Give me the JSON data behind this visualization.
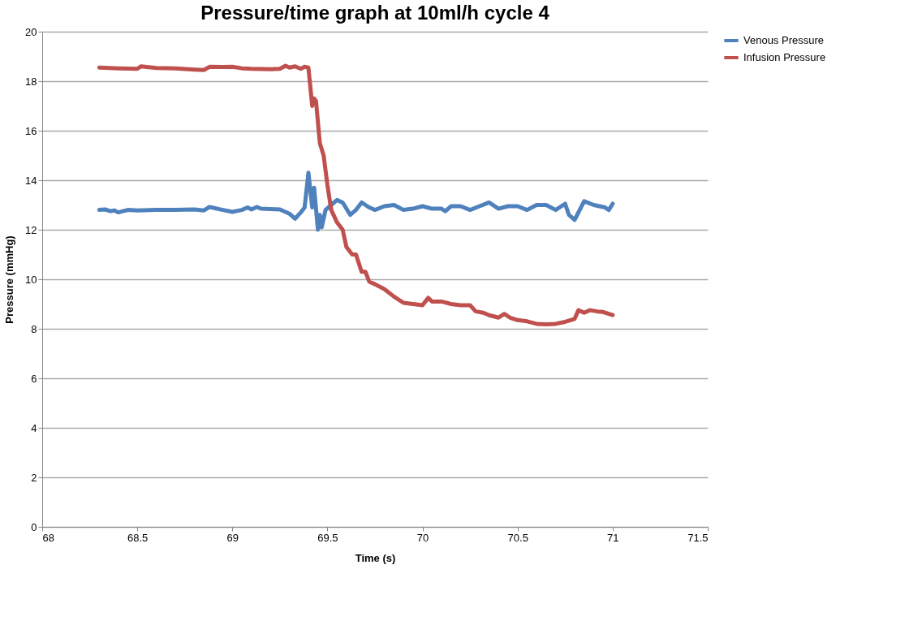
{
  "chart_data": {
    "type": "line",
    "title": "Pressure/time graph at 10ml/h cycle 4",
    "xlabel": "Time (s)",
    "ylabel": "Pressure (mmHg)",
    "xlim": [
      68,
      71.5
    ],
    "xticks": [
      68,
      68.5,
      69,
      69.5,
      70,
      70.5,
      71,
      71.5
    ],
    "ylim": [
      0,
      20
    ],
    "yticks": [
      0,
      2,
      4,
      6,
      8,
      10,
      12,
      14,
      16,
      18,
      20
    ],
    "grid": "y",
    "legend": "right",
    "marker": "none",
    "line_style": "solid",
    "series": [
      {
        "name": "Venous Pressure",
        "color": "#4f81bd",
        "x": [
          68.3,
          68.33,
          68.36,
          68.38,
          68.4,
          68.45,
          68.5,
          68.6,
          68.7,
          68.8,
          68.85,
          68.88,
          68.95,
          69.0,
          69.05,
          69.08,
          69.1,
          69.13,
          69.15,
          69.25,
          69.3,
          69.33,
          69.36,
          69.38,
          69.4,
          69.42,
          69.43,
          69.45,
          69.46,
          69.47,
          69.49,
          69.52,
          69.55,
          69.58,
          69.62,
          69.65,
          69.68,
          69.7,
          69.72,
          69.75,
          69.8,
          69.85,
          69.9,
          69.95,
          70.0,
          70.05,
          70.1,
          70.12,
          70.15,
          70.2,
          70.25,
          70.3,
          70.35,
          70.4,
          70.45,
          70.5,
          70.55,
          70.6,
          70.65,
          70.7,
          70.75,
          70.77,
          70.8,
          70.85,
          70.9,
          70.93,
          70.96,
          70.98,
          71.0
        ],
        "values": [
          12.8,
          12.82,
          12.75,
          12.78,
          12.7,
          12.8,
          12.78,
          12.8,
          12.8,
          12.82,
          12.78,
          12.92,
          12.8,
          12.72,
          12.8,
          12.9,
          12.82,
          12.92,
          12.85,
          12.82,
          12.65,
          12.45,
          12.7,
          12.9,
          14.3,
          12.9,
          13.7,
          12.0,
          12.6,
          12.1,
          12.8,
          13.0,
          13.2,
          13.1,
          12.6,
          12.8,
          13.1,
          13.0,
          12.9,
          12.8,
          12.95,
          13.0,
          12.8,
          12.85,
          12.95,
          12.85,
          12.85,
          12.75,
          12.95,
          12.95,
          12.8,
          12.95,
          13.1,
          12.85,
          12.95,
          12.95,
          12.8,
          13.0,
          13.0,
          12.8,
          13.05,
          12.6,
          12.4,
          13.15,
          13.0,
          12.95,
          12.9,
          12.8,
          13.05
        ]
      },
      {
        "name": "Infusion Pressure",
        "color": "#c0504d",
        "x": [
          68.3,
          68.4,
          68.5,
          68.52,
          68.6,
          68.7,
          68.8,
          68.85,
          68.88,
          68.95,
          69.0,
          69.05,
          69.1,
          69.2,
          69.25,
          69.28,
          69.3,
          69.33,
          69.36,
          69.38,
          69.4,
          69.42,
          69.43,
          69.44,
          69.46,
          69.48,
          69.5,
          69.52,
          69.55,
          69.58,
          69.6,
          69.63,
          69.65,
          69.68,
          69.7,
          69.72,
          69.75,
          69.8,
          69.85,
          69.9,
          69.95,
          70.0,
          70.03,
          70.05,
          70.1,
          70.15,
          70.2,
          70.25,
          70.28,
          70.32,
          70.35,
          70.4,
          70.43,
          70.46,
          70.5,
          70.55,
          70.6,
          70.65,
          70.7,
          70.75,
          70.8,
          70.82,
          70.85,
          70.88,
          70.92,
          70.95,
          71.0
        ],
        "values": [
          18.55,
          18.52,
          18.5,
          18.6,
          18.53,
          18.52,
          18.47,
          18.45,
          18.58,
          18.57,
          18.58,
          18.52,
          18.5,
          18.48,
          18.5,
          18.62,
          18.55,
          18.6,
          18.5,
          18.58,
          18.55,
          17.0,
          17.3,
          17.2,
          15.5,
          15.0,
          13.8,
          12.8,
          12.3,
          12.0,
          11.3,
          11.0,
          11.0,
          10.3,
          10.3,
          9.9,
          9.8,
          9.6,
          9.3,
          9.05,
          9.0,
          8.95,
          9.25,
          9.1,
          9.1,
          9.0,
          8.95,
          8.95,
          8.7,
          8.65,
          8.55,
          8.45,
          8.6,
          8.45,
          8.35,
          8.3,
          8.2,
          8.18,
          8.2,
          8.28,
          8.4,
          8.75,
          8.65,
          8.75,
          8.7,
          8.68,
          8.55
        ]
      }
    ]
  }
}
